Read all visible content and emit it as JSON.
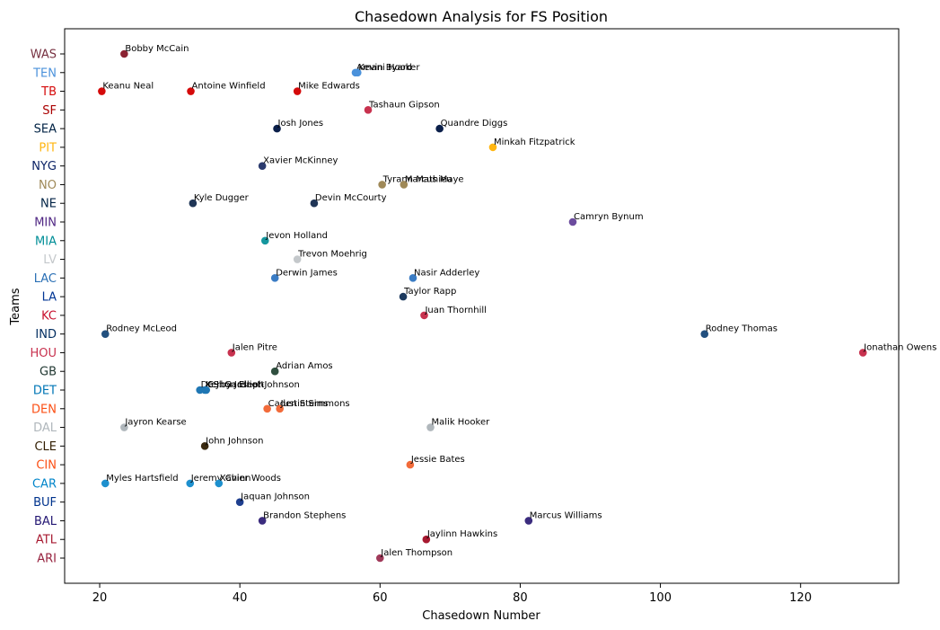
{
  "chart_data": {
    "type": "scatter",
    "title": "Chasedown Analysis for FS Position",
    "xlabel": "Chasedown Number",
    "ylabel": "Teams",
    "xlim": [
      15,
      134
    ],
    "xticks": [
      20,
      40,
      60,
      80,
      100,
      120
    ],
    "grid": false,
    "teams": [
      {
        "name": "ARI",
        "color": "#97233F"
      },
      {
        "name": "ATL",
        "color": "#A71930"
      },
      {
        "name": "BAL",
        "color": "#241773"
      },
      {
        "name": "BUF",
        "color": "#00338D"
      },
      {
        "name": "CAR",
        "color": "#0085CA"
      },
      {
        "name": "CIN",
        "color": "#FB4F14"
      },
      {
        "name": "CLE",
        "color": "#311D00"
      },
      {
        "name": "DAL",
        "color": "#B0B7BC"
      },
      {
        "name": "DEN",
        "color": "#FB4F14"
      },
      {
        "name": "DET",
        "color": "#0076B6"
      },
      {
        "name": "GB",
        "color": "#203731"
      },
      {
        "name": "HOU",
        "color": "#C8324F"
      },
      {
        "name": "IND",
        "color": "#002C5F"
      },
      {
        "name": "KC",
        "color": "#C8102E"
      },
      {
        "name": "LA",
        "color": "#003594"
      },
      {
        "name": "LAC",
        "color": "#2A6FB5"
      },
      {
        "name": "LV",
        "color": "#C4C8CB"
      },
      {
        "name": "MIA",
        "color": "#008E97"
      },
      {
        "name": "MIN",
        "color": "#4F2683"
      },
      {
        "name": "NE",
        "color": "#002244"
      },
      {
        "name": "NO",
        "color": "#9F8958"
      },
      {
        "name": "NYG",
        "color": "#0B2265"
      },
      {
        "name": "PIT",
        "color": "#FFB612"
      },
      {
        "name": "SEA",
        "color": "#002244"
      },
      {
        "name": "SF",
        "color": "#AA0000"
      },
      {
        "name": "TB",
        "color": "#D50A0A"
      },
      {
        "name": "TEN",
        "color": "#4B92DB"
      },
      {
        "name": "WAS",
        "color": "#773141"
      }
    ],
    "points": [
      {
        "player": "Bobby McCain",
        "team": "WAS",
        "x": 23.5,
        "color": "#8B2332"
      },
      {
        "player": "Amani Hooker",
        "team": "TEN",
        "x": 56.5,
        "color": "#4B92DB"
      },
      {
        "player": "Kevin Byard",
        "team": "TEN",
        "x": 56.8,
        "color": "#4B92DB"
      },
      {
        "player": "Keanu Neal",
        "team": "TB",
        "x": 20.3,
        "color": "#D50A0A"
      },
      {
        "player": "Antoine Winfield",
        "team": "TB",
        "x": 33.0,
        "color": "#D50A0A"
      },
      {
        "player": "Mike Edwards",
        "team": "TB",
        "x": 48.2,
        "color": "#D50A0A"
      },
      {
        "player": "Tashaun Gipson",
        "team": "SF",
        "x": 58.3,
        "color": "#C8324F"
      },
      {
        "player": "Josh Jones",
        "team": "SEA",
        "x": 45.3,
        "color": "#0B1F4A"
      },
      {
        "player": "Quandre Diggs",
        "team": "SEA",
        "x": 68.5,
        "color": "#0B1F4A"
      },
      {
        "player": "Minkah Fitzpatrick",
        "team": "PIT",
        "x": 76.1,
        "color": "#FFB612"
      },
      {
        "player": "Xavier McKinney",
        "team": "NYG",
        "x": 43.2,
        "color": "#2B3B6E"
      },
      {
        "player": "Tyrann Mathieu",
        "team": "NO",
        "x": 60.3,
        "color": "#9F8958"
      },
      {
        "player": "Marcus Maye",
        "team": "NO",
        "x": 63.4,
        "color": "#9F8958"
      },
      {
        "player": "Kyle Dugger",
        "team": "NE",
        "x": 33.3,
        "color": "#1F3556"
      },
      {
        "player": "Devin McCourty",
        "team": "NE",
        "x": 50.6,
        "color": "#1F3556"
      },
      {
        "player": "Camryn Bynum",
        "team": "MIN",
        "x": 87.5,
        "color": "#6C4C9E"
      },
      {
        "player": "Jevon Holland",
        "team": "MIA",
        "x": 43.6,
        "color": "#15979E"
      },
      {
        "player": "Trevon Moehrig",
        "team": "LV",
        "x": 48.2,
        "color": "#C4C8CB"
      },
      {
        "player": "Derwin James",
        "team": "LAC",
        "x": 45.0,
        "color": "#3A7CC4"
      },
      {
        "player": "Nasir Adderley",
        "team": "LAC",
        "x": 64.7,
        "color": "#3A7CC4"
      },
      {
        "player": "Taylor Rapp",
        "team": "LA",
        "x": 63.3,
        "color": "#1D3A5F"
      },
      {
        "player": "Juan Thornhill",
        "team": "KC",
        "x": 66.3,
        "color": "#C8324F"
      },
      {
        "player": "Rodney McLeod",
        "team": "IND",
        "x": 20.8,
        "color": "#22507F"
      },
      {
        "player": "Rodney Thomas",
        "team": "IND",
        "x": 106.3,
        "color": "#22507F"
      },
      {
        "player": "Jalen Pitre",
        "team": "HOU",
        "x": 38.8,
        "color": "#C8324F"
      },
      {
        "player": "Jonathan Owens",
        "team": "HOU",
        "x": 128.9,
        "color": "#C8324F"
      },
      {
        "player": "Adrian Amos",
        "team": "GB",
        "x": 45.0,
        "color": "#2F4F3F"
      },
      {
        "player": "DeShon Elliott",
        "team": "DET",
        "x": 34.3,
        "color": "#1F77B4"
      },
      {
        "player": "Kerby Joseph",
        "team": "DET",
        "x": 35.0,
        "color": "#1F77B4"
      },
      {
        "player": "C.J. Gardner-Johnson",
        "team": "DET",
        "x": 35.2,
        "color": "#1F77B4"
      },
      {
        "player": "Caden Sterns",
        "team": "DEN",
        "x": 43.9,
        "color": "#F26B3A"
      },
      {
        "player": "Justin Simmons",
        "team": "DEN",
        "x": 45.7,
        "color": "#F26B3A"
      },
      {
        "player": "Jayron Kearse",
        "team": "DAL",
        "x": 23.5,
        "color": "#B0B7BC"
      },
      {
        "player": "Malik Hooker",
        "team": "DAL",
        "x": 67.2,
        "color": "#B0B7BC"
      },
      {
        "player": "John Johnson",
        "team": "CLE",
        "x": 35.0,
        "color": "#3A2A10"
      },
      {
        "player": "Jessie Bates",
        "team": "CIN",
        "x": 64.3,
        "color": "#F26B3A"
      },
      {
        "player": "Myles Hartsfield",
        "team": "CAR",
        "x": 20.8,
        "color": "#1E90CE"
      },
      {
        "player": "Jeremy Chinn",
        "team": "CAR",
        "x": 32.9,
        "color": "#1E90CE"
      },
      {
        "player": "Xavier Woods",
        "team": "CAR",
        "x": 37.0,
        "color": "#1E90CE"
      },
      {
        "player": "Jaquan Johnson",
        "team": "BUF",
        "x": 40.0,
        "color": "#1F3F8F"
      },
      {
        "player": "Brandon Stephens",
        "team": "BAL",
        "x": 43.2,
        "color": "#3B2C7E"
      },
      {
        "player": "Marcus Williams",
        "team": "BAL",
        "x": 81.2,
        "color": "#3B2C7E"
      },
      {
        "player": "Jaylinn Hawkins",
        "team": "ATL",
        "x": 66.6,
        "color": "#A71930"
      },
      {
        "player": "Jalen Thompson",
        "team": "ARI",
        "x": 60.0,
        "color": "#A03A5A"
      }
    ]
  }
}
